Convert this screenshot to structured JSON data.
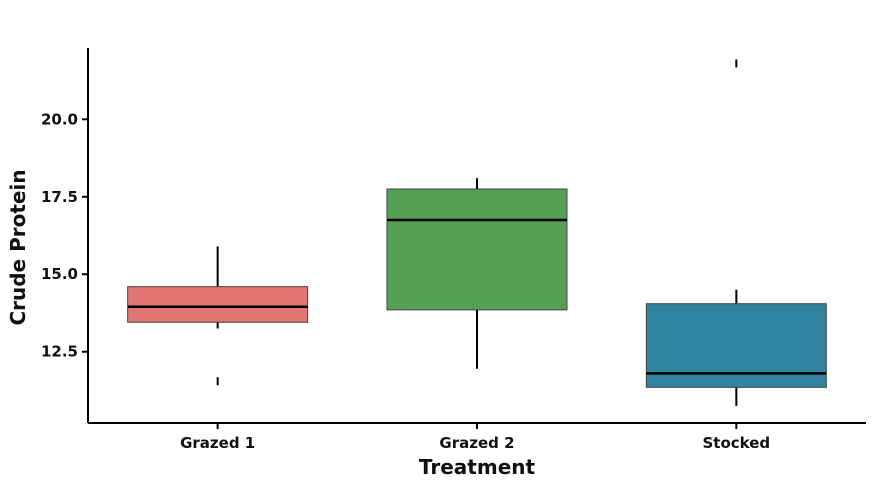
{
  "chart_data": {
    "type": "box",
    "title": "",
    "xlabel": "Treatment",
    "ylabel": "Crude Protein",
    "ylim": [
      10.2,
      22.3
    ],
    "yticks": [
      "12.5",
      "15.0",
      "17.5",
      "20.0"
    ],
    "grid": false,
    "legend": "none",
    "categories": [
      "Grazed 1",
      "Grazed 2",
      "Stocked"
    ],
    "boxes": [
      {
        "category": "Grazed 1",
        "color": "#e17571",
        "whisker_low": 13.25,
        "q1": 13.45,
        "median": 13.95,
        "q3": 14.6,
        "whisker_high": 15.9,
        "outliers": [
          11.55
        ]
      },
      {
        "category": "Grazed 2",
        "color": "#56a055",
        "whisker_low": 11.95,
        "q1": 13.85,
        "median": 16.75,
        "q3": 17.75,
        "whisker_high": 18.1,
        "outliers": []
      },
      {
        "category": "Stocked",
        "color": "#31849f",
        "whisker_low": 10.75,
        "q1": 11.35,
        "median": 11.8,
        "q3": 14.05,
        "whisker_high": 14.5,
        "outliers": [
          21.8
        ]
      }
    ]
  }
}
